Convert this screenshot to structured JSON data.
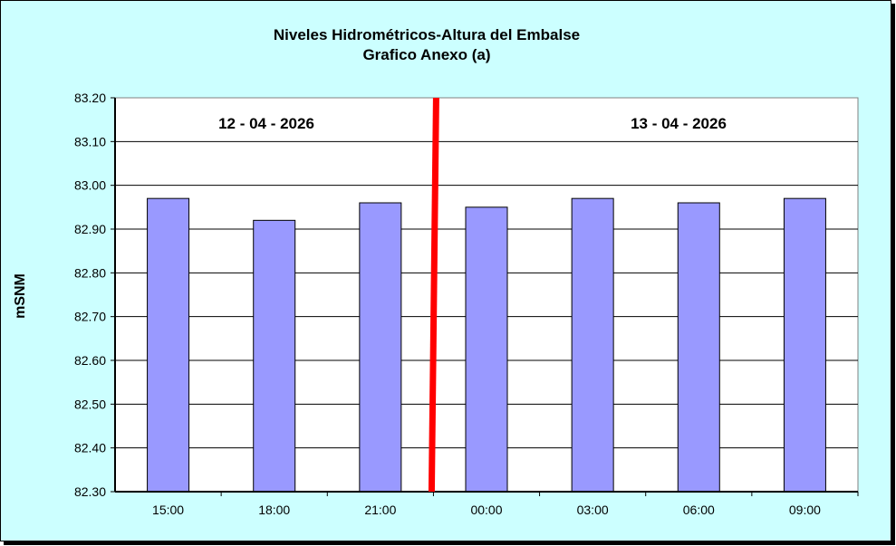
{
  "chart_data": {
    "type": "bar",
    "title": "Niveles Hidrométricos-Altura del Embalse",
    "subtitle": "Grafico Anexo (a)",
    "xlabel": "",
    "ylabel": "mSNM",
    "categories": [
      "15:00",
      "18:00",
      "21:00",
      "00:00",
      "03:00",
      "06:00",
      "09:00"
    ],
    "values": [
      82.97,
      82.92,
      82.96,
      82.95,
      82.97,
      82.96,
      82.97
    ],
    "ylim": [
      82.3,
      83.2
    ],
    "yticks": [
      "82.30",
      "82.40",
      "82.50",
      "82.60",
      "82.70",
      "82.80",
      "82.90",
      "83.00",
      "83.10",
      "83.20"
    ],
    "grid": true,
    "annotations": [
      {
        "text": "12 - 04 - 2026"
      },
      {
        "text": "13 - 04 - 2026"
      }
    ],
    "divider_between": [
      "21:00",
      "00:00"
    ],
    "colors": {
      "bar": "#9999ff",
      "divider": "#ff0000",
      "background": "#ccffff",
      "plot": "#ffffff"
    }
  }
}
